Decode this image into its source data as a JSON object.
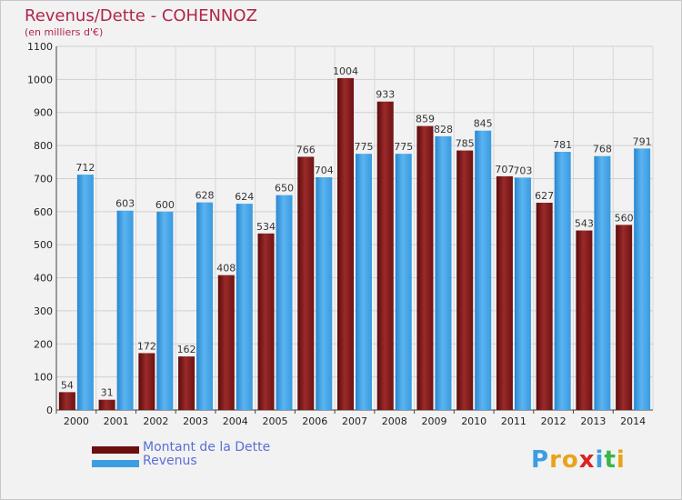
{
  "header": {
    "title": "Revenus/Dette - COHENNOZ",
    "subtitle": "(en milliers d'€)"
  },
  "chart_data": {
    "type": "bar",
    "categories": [
      "2000",
      "2001",
      "2002",
      "2003",
      "2004",
      "2005",
      "2006",
      "2007",
      "2008",
      "2009",
      "2010",
      "2011",
      "2012",
      "2013",
      "2014"
    ],
    "series": [
      {
        "name": "Montant de la Dette",
        "color": "#8b1a1a",
        "values": [
          54,
          31,
          172,
          162,
          408,
          534,
          766,
          1004,
          933,
          859,
          785,
          707,
          627,
          543,
          560
        ]
      },
      {
        "name": "Revenus",
        "color": "#3d9de2",
        "values": [
          712,
          603,
          600,
          628,
          624,
          650,
          704,
          775,
          775,
          828,
          845,
          703,
          781,
          768,
          791
        ]
      }
    ],
    "title": "Revenus/Dette - COHENNOZ",
    "ylabel": "(en milliers d'€)",
    "ylim": [
      0,
      1100
    ],
    "yticks": [
      0,
      100,
      200,
      300,
      400,
      500,
      600,
      700,
      800,
      900,
      1000,
      1100
    ],
    "grid": true,
    "legend_position": "bottom-left"
  },
  "legend": {
    "items": [
      {
        "label": "Montant de la Dette",
        "color": "#6b0f0f"
      },
      {
        "label": "Revenus",
        "color": "#3d9de2"
      }
    ]
  },
  "logo": {
    "letters": [
      "P",
      "r",
      "o",
      "x",
      "i",
      "t",
      "i"
    ],
    "colors": [
      "#3d9de2",
      "#e8a317",
      "#e8a317",
      "#d22",
      "#3d9de2",
      "#3ab54a",
      "#e8a317"
    ]
  }
}
